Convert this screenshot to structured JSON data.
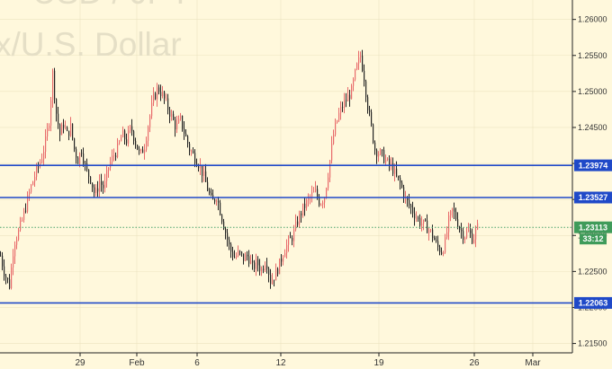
{
  "chart_data": {
    "type": "candlestick",
    "title": "USD / JPY",
    "subtitle": "x/U.S. Dollar",
    "x_ticks": [
      "29",
      "Feb",
      "6",
      "12",
      "19",
      "26",
      "Mar"
    ],
    "y_ticks": [
      "1.26000",
      "1.25500",
      "1.25000",
      "1.24500",
      "1.24000",
      "1.23500",
      "1.23000",
      "1.22500",
      "1.22000",
      "1.21500"
    ],
    "ylim": [
      1.2137,
      1.2627
    ],
    "current_price": "1.23113",
    "countdown": "33:12",
    "horizontal_levels": [
      {
        "label": "1.23974",
        "value": 1.23974
      },
      {
        "label": "1.23527",
        "value": 1.23527
      },
      {
        "label": "1.22063",
        "value": 1.22063
      }
    ],
    "price_path": [
      [
        0,
        1.2272
      ],
      [
        5,
        1.2245
      ],
      [
        10,
        1.2231
      ],
      [
        15,
        1.229
      ],
      [
        20,
        1.2305
      ],
      [
        25,
        1.2325
      ],
      [
        30,
        1.235
      ],
      [
        35,
        1.2372
      ],
      [
        40,
        1.239
      ],
      [
        45,
        1.2405
      ],
      [
        50,
        1.243
      ],
      [
        54,
        1.246
      ],
      [
        58,
        1.2525
      ],
      [
        62,
        1.247
      ],
      [
        66,
        1.244
      ],
      [
        70,
        1.2455
      ],
      [
        74,
        1.244
      ],
      [
        78,
        1.245
      ],
      [
        82,
        1.242
      ],
      [
        86,
        1.2405
      ],
      [
        90,
        1.242
      ],
      [
        95,
        1.239
      ],
      [
        100,
        1.238
      ],
      [
        105,
        1.2355
      ],
      [
        110,
        1.2375
      ],
      [
        115,
        1.2365
      ],
      [
        120,
        1.2395
      ],
      [
        125,
        1.241
      ],
      [
        130,
        1.242
      ],
      [
        135,
        1.244
      ],
      [
        140,
        1.2432
      ],
      [
        145,
        1.245
      ],
      [
        150,
        1.243
      ],
      [
        155,
        1.241
      ],
      [
        160,
        1.2425
      ],
      [
        165,
        1.246
      ],
      [
        170,
        1.249
      ],
      [
        175,
        1.2505
      ],
      [
        180,
        1.2495
      ],
      [
        185,
        1.248
      ],
      [
        190,
        1.2465
      ],
      [
        195,
        1.245
      ],
      [
        200,
        1.246
      ],
      [
        205,
        1.244
      ],
      [
        210,
        1.242
      ],
      [
        215,
        1.241
      ],
      [
        220,
        1.24
      ],
      [
        225,
        1.2385
      ],
      [
        230,
        1.2365
      ],
      [
        235,
        1.2345
      ],
      [
        240,
        1.2355
      ],
      [
        245,
        1.233
      ],
      [
        250,
        1.2305
      ],
      [
        255,
        1.228
      ],
      [
        260,
        1.227
      ],
      [
        265,
        1.2275
      ],
      [
        270,
        1.2268
      ],
      [
        275,
        1.2272
      ],
      [
        280,
        1.2255
      ],
      [
        285,
        1.2262
      ],
      [
        290,
        1.2252
      ],
      [
        295,
        1.2268
      ],
      [
        300,
        1.2237
      ],
      [
        305,
        1.2245
      ],
      [
        310,
        1.226
      ],
      [
        315,
        1.228
      ],
      [
        320,
        1.229
      ],
      [
        325,
        1.23
      ],
      [
        330,
        1.232
      ],
      [
        335,
        1.2335
      ],
      [
        340,
        1.2345
      ],
      [
        345,
        1.2355
      ],
      [
        350,
        1.236
      ],
      [
        355,
        1.2345
      ],
      [
        360,
        1.2355
      ],
      [
        365,
        1.2395
      ],
      [
        370,
        1.244
      ],
      [
        375,
        1.2465
      ],
      [
        380,
        1.248
      ],
      [
        385,
        1.249
      ],
      [
        390,
        1.25
      ],
      [
        395,
        1.253
      ],
      [
        400,
        1.255
      ],
      [
        404,
        1.252
      ],
      [
        408,
        1.248
      ],
      [
        412,
        1.245
      ],
      [
        416,
        1.242
      ],
      [
        420,
        1.2415
      ],
      [
        425,
        1.241
      ],
      [
        430,
        1.24
      ],
      [
        435,
        1.2395
      ],
      [
        440,
        1.238
      ],
      [
        445,
        1.237
      ],
      [
        450,
        1.235
      ],
      [
        455,
        1.234
      ],
      [
        460,
        1.233
      ],
      [
        465,
        1.232
      ],
      [
        470,
        1.2315
      ],
      [
        475,
        1.231
      ],
      [
        480,
        1.23
      ],
      [
        485,
        1.2285
      ],
      [
        490,
        1.2278
      ],
      [
        494,
        1.229
      ],
      [
        498,
        1.232
      ],
      [
        502,
        1.2335
      ],
      [
        506,
        1.2325
      ],
      [
        510,
        1.231
      ],
      [
        515,
        1.23
      ],
      [
        520,
        1.2305
      ],
      [
        525,
        1.2295
      ],
      [
        530,
        1.2311
      ]
    ]
  },
  "colors": {
    "background": "#fff8dc",
    "watermark": "#e5dfc6",
    "level_line": "#1f49c8",
    "badge_level": "#1f49c8",
    "badge_price": "#3f9b5a",
    "up": "#e86a6a",
    "down": "#222222",
    "current_line": "#4aa36b",
    "grid": "#ece3c0"
  }
}
